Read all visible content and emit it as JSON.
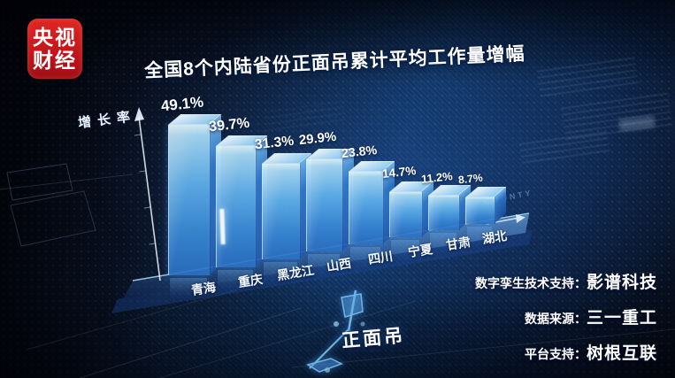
{
  "logo": {
    "line1": "央视",
    "line2": "财经"
  },
  "title": "全国8个内陆省份正面吊累计平均工作量增幅",
  "chart_data": {
    "type": "bar",
    "title": "全国8个内陆省份正面吊累计平均工作量增幅",
    "ylabel": "增长率",
    "xlabel": "",
    "categories": [
      "青海",
      "重庆",
      "黑龙江",
      "山西",
      "四川",
      "宁夏",
      "甘肃",
      "湖北"
    ],
    "values": [
      49.1,
      39.7,
      31.3,
      29.9,
      23.8,
      14.7,
      11.2,
      8.7
    ],
    "unit": "%",
    "ylim": [
      0,
      55
    ],
    "grid": false,
    "legend_position": "none",
    "bar_color": "#63b4ef",
    "axis_decor_text": "COUNTY"
  },
  "machine_label": "正面吊",
  "credits": [
    {
      "label": "数字孪生技术支持：",
      "value": "影谱科技"
    },
    {
      "label": "数据来源：",
      "value": "三一重工"
    },
    {
      "label": "平台支持：",
      "value": "树根互联"
    }
  ]
}
